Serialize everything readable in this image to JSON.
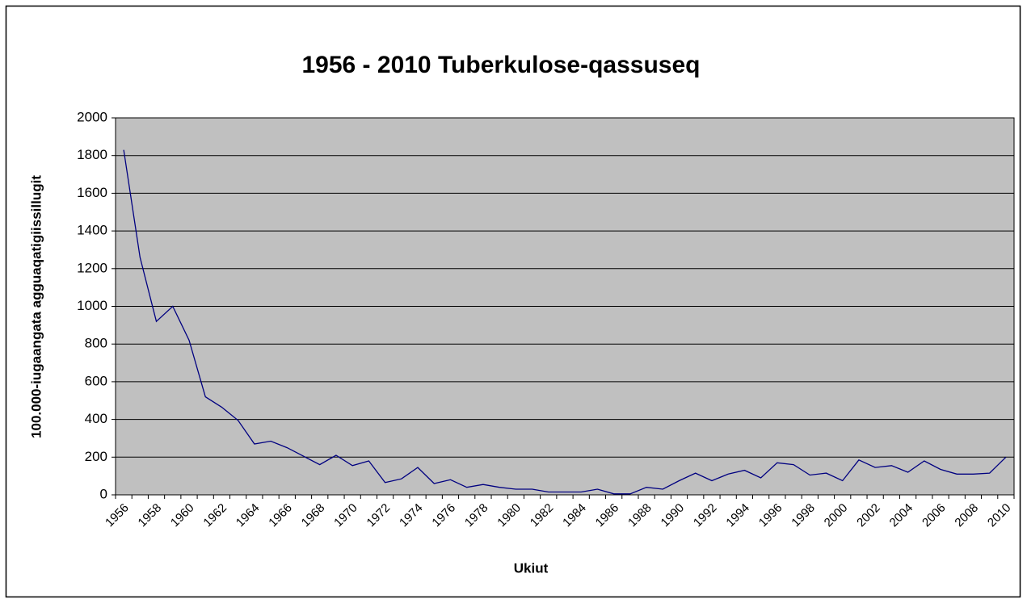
{
  "chart_data": {
    "type": "line",
    "title": "1956 - 2010 Tuberkulose-qassuseq",
    "x_label": "Ukiut",
    "y_label": "100.000-iugaangata agguaqatigiissillugit",
    "categories": [
      "1956",
      null,
      "1958",
      null,
      "1960",
      null,
      "1962",
      null,
      "1964",
      null,
      "1966",
      null,
      "1968",
      null,
      "1970",
      null,
      "1972",
      null,
      "1974",
      null,
      "1976",
      null,
      "1978",
      null,
      "1980",
      null,
      "1982",
      null,
      "1984",
      null,
      "1986",
      null,
      "1988",
      null,
      "1990",
      null,
      "1992",
      null,
      "1994",
      null,
      "1996",
      null,
      "1998",
      null,
      "2000",
      null,
      "2002",
      null,
      "2004",
      null,
      "2006",
      null,
      "2008",
      null,
      "2010"
    ],
    "values": [
      1830,
      1260,
      920,
      1000,
      820,
      520,
      465,
      395,
      270,
      285,
      250,
      205,
      160,
      210,
      155,
      180,
      65,
      85,
      145,
      60,
      80,
      40,
      55,
      40,
      30,
      30,
      15,
      15,
      15,
      30,
      5,
      5,
      40,
      30,
      75,
      115,
      75,
      110,
      130,
      90,
      170,
      160,
      105,
      115,
      75,
      185,
      145,
      155,
      120,
      180,
      135,
      110,
      110,
      115,
      200
    ],
    "color": "#000080",
    "plot_background": "#c0c0c0",
    "ylim": [
      0,
      2000
    ],
    "yticks": [
      0,
      200,
      400,
      600,
      800,
      1000,
      1200,
      1400,
      1600,
      1800,
      2000
    ],
    "grid": true
  }
}
